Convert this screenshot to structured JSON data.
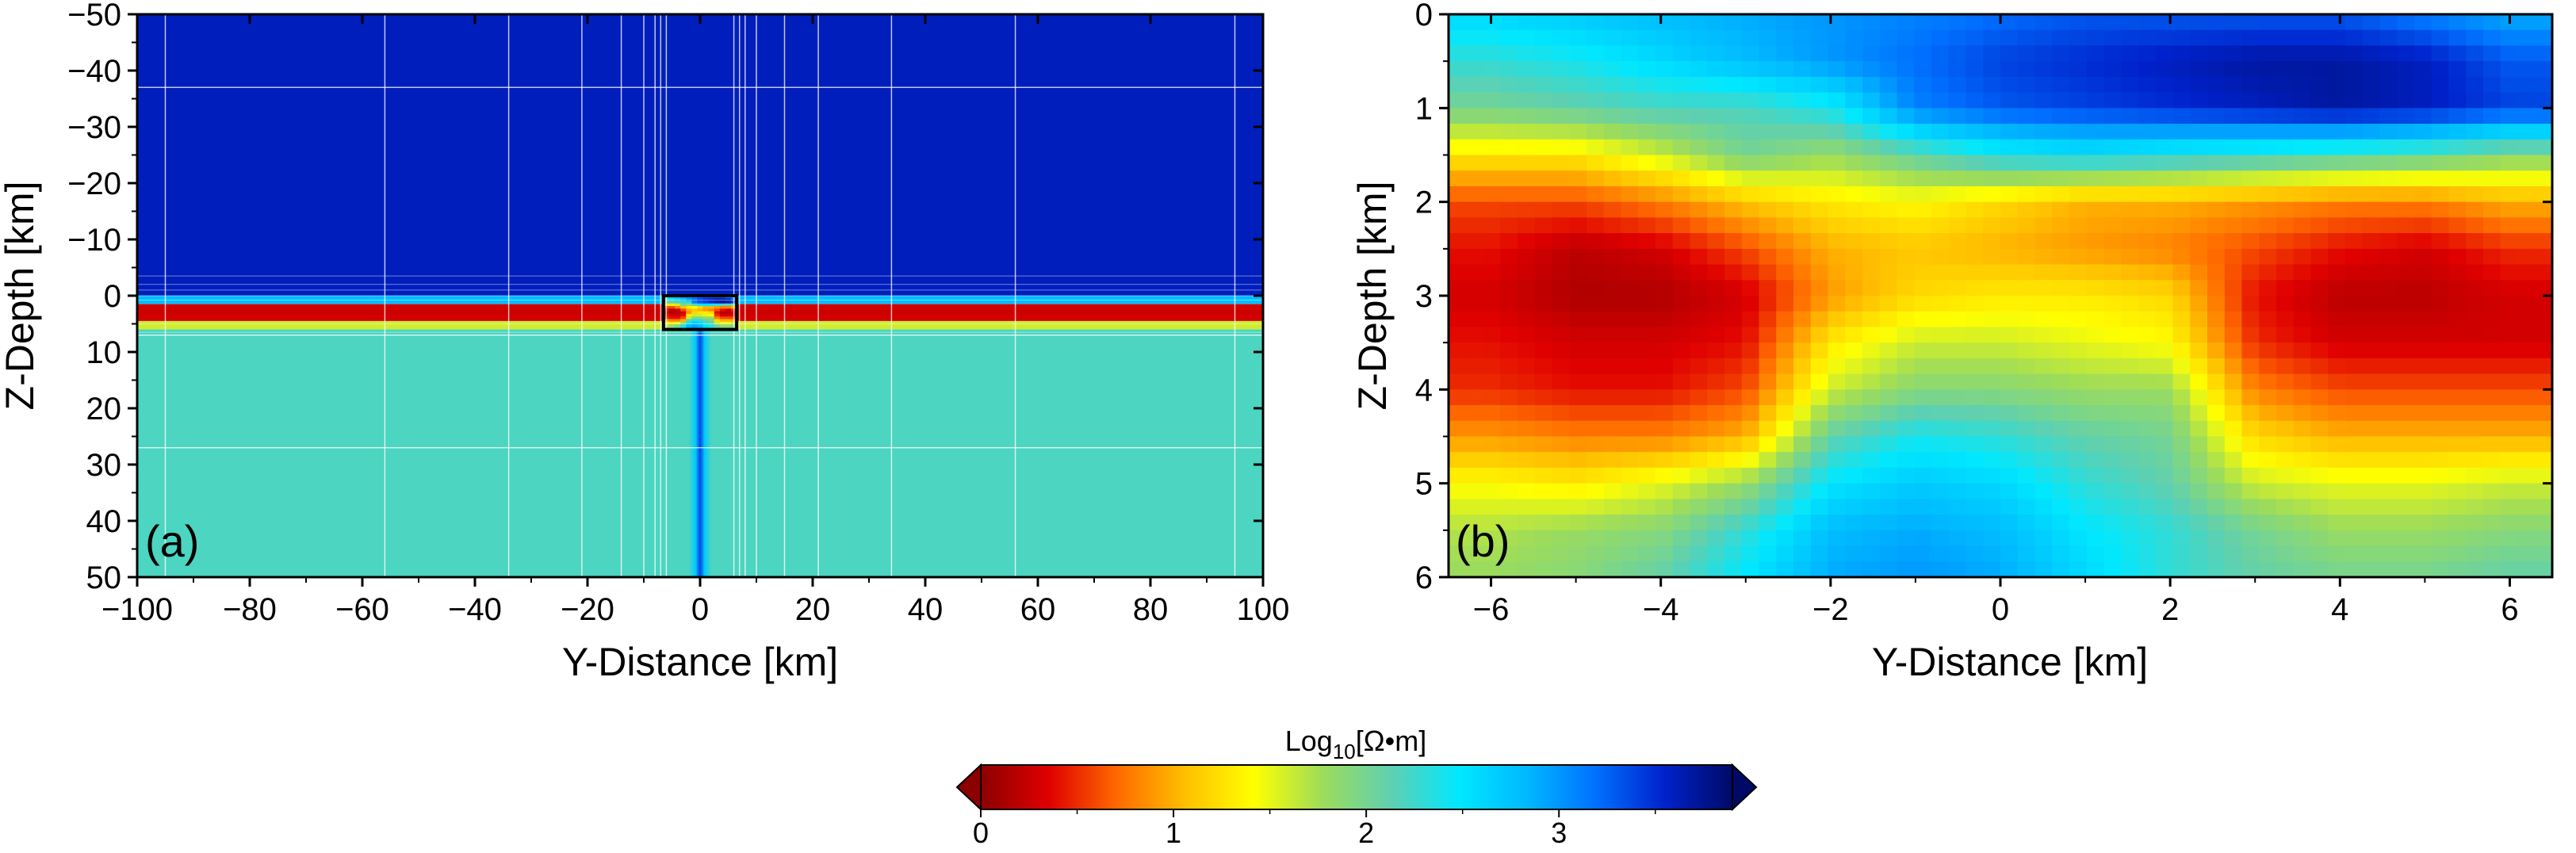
{
  "colors": {
    "colormap_stops": [
      "#8c0000",
      "#e00000",
      "#ff6a00",
      "#ffc000",
      "#ffff00",
      "#9edc5a",
      "#5fd0b0",
      "#00e8ff",
      "#00b8ff",
      "#0070ff",
      "#0022cc",
      "#000a66"
    ],
    "host_conductive": "#cc0000",
    "host_air": "#00249e",
    "host_basement": "#64d2b0",
    "gridline": "#ffffff",
    "frame": "#000000"
  },
  "chart_data": [
    {
      "type": "heatmap",
      "panel_label": "(a)",
      "xlabel": "Y-Distance [km]",
      "ylabel": "Z-Depth [km]",
      "xlim": [
        -100,
        100
      ],
      "ylim": [
        -50,
        50
      ],
      "y_inverted": true,
      "xticks": [
        -100,
        -80,
        -60,
        -40,
        -20,
        0,
        20,
        40,
        60,
        80,
        100
      ],
      "yticks": [
        -50,
        -40,
        -30,
        -20,
        -10,
        0,
        10,
        20,
        30,
        40,
        50
      ],
      "xtick_labels": [
        "−100",
        "−80",
        "−60",
        "−40",
        "−20",
        "0",
        "20",
        "40",
        "60",
        "80",
        "100"
      ],
      "ytick_labels": [
        "−50",
        "−40",
        "−30",
        "−20",
        "−10",
        "0",
        "10",
        "20",
        "30",
        "40",
        "50"
      ],
      "layers_log10_ohm_m": [
        {
          "z_top": -50,
          "z_bottom": 0,
          "value": 3.6
        },
        {
          "z_top": 0,
          "z_bottom": 1.5,
          "value": 2.8
        },
        {
          "z_top": 1.5,
          "z_bottom": 4.5,
          "value": 0.3
        },
        {
          "z_top": 4.5,
          "z_bottom": 6,
          "value": 1.6
        },
        {
          "z_top": 6,
          "z_bottom": 50,
          "value": 2.2
        }
      ],
      "inset_box_km": {
        "x": [
          -6.5,
          6.5
        ],
        "z": [
          0,
          6
        ]
      },
      "vertical_conductor": {
        "x": [
          -2,
          2
        ],
        "z": [
          6,
          50
        ],
        "value": 2.8
      },
      "grid_lines_x": [
        -95,
        -56,
        -34,
        -21,
        -14,
        -10,
        -8,
        -7,
        -6,
        6,
        7,
        8,
        10,
        15,
        21,
        34,
        56,
        95
      ],
      "grid_lines_z": [
        -37,
        7,
        27
      ]
    },
    {
      "type": "heatmap",
      "panel_label": "(b)",
      "xlabel": "Y-Distance [km]",
      "ylabel": "Z-Depth [km]",
      "xlim": [
        -6.5,
        6.5
      ],
      "ylim": [
        0,
        6
      ],
      "y_inverted": true,
      "xticks": [
        -6,
        -4,
        -2,
        0,
        2,
        4,
        6
      ],
      "yticks": [
        0,
        1,
        2,
        3,
        4,
        5,
        6
      ],
      "xtick_labels": [
        "−6",
        "−4",
        "−2",
        "0",
        "2",
        "4",
        "6"
      ],
      "ytick_labels": [
        "0",
        "1",
        "2",
        "3",
        "4",
        "5",
        "6"
      ],
      "x_centers_km": [
        -6,
        -5,
        -4,
        -3,
        -2,
        -1,
        0,
        1,
        2,
        3,
        4,
        5,
        6
      ],
      "z_centers_km": [
        0,
        0.5,
        1,
        1.5,
        2,
        2.5,
        3,
        3.5,
        4,
        4.5,
        5,
        5.5,
        6
      ],
      "log10_resistivity": [
        [
          2.6,
          2.7,
          2.8,
          2.9,
          3.0,
          3.1,
          3.2,
          3.3,
          3.3,
          3.3,
          3.3,
          3.1,
          2.9
        ],
        [
          2.3,
          2.4,
          2.6,
          2.8,
          3.0,
          3.2,
          3.4,
          3.5,
          3.6,
          3.7,
          3.7,
          3.6,
          3.3
        ],
        [
          2.0,
          2.1,
          2.2,
          2.2,
          2.4,
          3.1,
          3.3,
          3.4,
          3.5,
          3.6,
          3.7,
          3.6,
          3.4
        ],
        [
          1.3,
          1.3,
          1.6,
          2.0,
          1.8,
          2.1,
          2.4,
          2.5,
          2.4,
          2.3,
          2.2,
          2.1,
          1.9
        ],
        [
          0.6,
          0.6,
          0.8,
          1.1,
          1.3,
          1.4,
          1.2,
          1.0,
          1.0,
          0.9,
          0.8,
          0.8,
          1.0
        ],
        [
          0.4,
          0.2,
          0.3,
          0.6,
          1.0,
          1.1,
          1.0,
          0.9,
          0.8,
          0.6,
          0.4,
          0.3,
          0.5
        ],
        [
          0.3,
          0.15,
          0.15,
          0.3,
          0.9,
          1.2,
          1.3,
          1.3,
          1.2,
          0.4,
          0.2,
          0.2,
          0.3
        ],
        [
          0.4,
          0.3,
          0.3,
          0.4,
          1.3,
          1.6,
          1.6,
          1.5,
          1.4,
          0.5,
          0.3,
          0.3,
          0.3
        ],
        [
          0.5,
          0.4,
          0.4,
          0.6,
          1.6,
          1.9,
          1.9,
          1.8,
          1.8,
          0.8,
          0.6,
          0.6,
          0.6
        ],
        [
          0.9,
          0.8,
          0.8,
          1.0,
          2.1,
          2.4,
          2.3,
          2.1,
          2.0,
          1.2,
          1.0,
          1.0,
          1.0
        ],
        [
          1.4,
          1.3,
          1.5,
          1.8,
          2.5,
          2.7,
          2.6,
          2.3,
          2.1,
          1.6,
          1.5,
          1.5,
          1.6
        ],
        [
          1.7,
          1.8,
          1.9,
          2.3,
          2.8,
          2.9,
          2.8,
          2.5,
          2.3,
          2.0,
          1.8,
          1.8,
          1.9
        ],
        [
          1.8,
          1.9,
          2.1,
          2.5,
          2.9,
          3.0,
          2.9,
          2.6,
          2.3,
          2.1,
          2.0,
          2.0,
          2.1
        ]
      ]
    },
    {
      "type": "colorbar",
      "label_prefix": "Log",
      "label_sub": "10",
      "label_suffix": "[Ω•m]",
      "range": [
        0,
        3.9
      ],
      "ticks": [
        0,
        1,
        2,
        3
      ],
      "tick_labels": [
        "0",
        "1",
        "2",
        "3"
      ],
      "extend": "both"
    }
  ]
}
